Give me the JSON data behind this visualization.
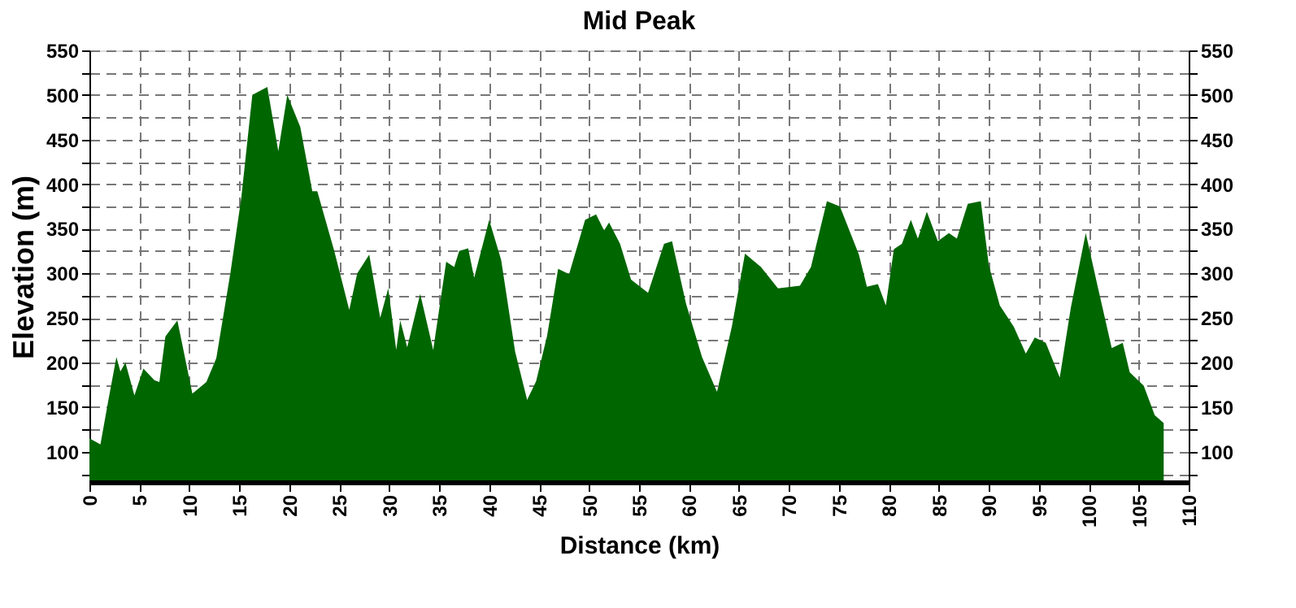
{
  "chart_data": {
    "type": "area",
    "title": "Mid Peak",
    "xlabel": "Distance (km)",
    "ylabel": "Elevation (m)",
    "x": [
      0,
      1.1,
      1.9,
      2.7,
      3.1,
      3.6,
      4.5,
      5.4,
      6.5,
      7.0,
      7.6,
      8.8,
      10.3,
      11.7,
      12.7,
      14.1,
      15.2,
      16.3,
      17.8,
      18.9,
      19.8,
      21.1,
      22.3,
      22.8,
      24.5,
      26.0,
      26.8,
      28.0,
      29.1,
      29.9,
      30.7,
      31.1,
      31.8,
      33.1,
      34.4,
      35.7,
      36.5,
      37.0,
      37.9,
      38.5,
      40.0,
      41.2,
      42.6,
      43.8,
      44.7,
      45.8,
      46.9,
      48.0,
      49.6,
      50.7,
      51.5,
      52.0,
      53.1,
      54.2,
      55.9,
      57.5,
      58.3,
      59.7,
      61.3,
      62.8,
      64.3,
      65.6,
      67.2,
      68.9,
      71.1,
      72.2,
      73.8,
      75.1,
      77.0,
      77.8,
      78.9,
      79.7,
      80.5,
      81.3,
      82.2,
      82.9,
      83.8,
      84.9,
      86.0,
      86.8,
      87.9,
      89.2,
      90.0,
      91.1,
      92.5,
      93.7,
      94.6,
      95.7,
      97.1,
      98.2,
      99.7,
      100.9,
      102.3,
      103.4,
      104.1,
      105.5,
      106.6,
      107.5
    ],
    "series": [
      {
        "color": "#006600",
        "values": [
          115,
          108,
          158,
          206,
          190,
          200,
          163,
          193,
          180,
          178,
          229,
          247,
          165,
          178,
          205,
          300,
          385,
          500,
          509,
          437,
          500,
          464,
          392,
          392,
          325,
          259,
          300,
          321,
          250,
          283,
          214,
          247,
          217,
          277,
          214,
          313,
          307,
          325,
          328,
          295,
          360,
          315,
          212,
          158,
          179,
          230,
          305,
          299,
          360,
          366,
          348,
          357,
          333,
          293,
          278,
          333,
          336,
          266,
          206,
          167,
          241,
          322,
          307,
          283,
          286,
          307,
          381,
          375,
          321,
          285,
          288,
          264,
          327,
          333,
          360,
          339,
          369,
          336,
          345,
          339,
          378,
          381,
          309,
          264,
          240,
          210,
          228,
          222,
          183,
          261,
          345,
          285,
          216,
          222,
          189,
          174,
          141,
          132
        ]
      }
    ],
    "xlim": [
      0,
      110
    ],
    "xticks": [
      0,
      5,
      10,
      15,
      20,
      25,
      30,
      35,
      40,
      45,
      50,
      55,
      60,
      65,
      70,
      75,
      80,
      85,
      90,
      95,
      100,
      105,
      110
    ],
    "ylim": [
      65,
      550
    ],
    "yticks": [
      {
        "value": 75,
        "label": null
      },
      100,
      {
        "value": 125,
        "label": null
      },
      150,
      {
        "value": 175,
        "label": null
      },
      200,
      {
        "value": 225,
        "label": null
      },
      250,
      {
        "value": 275,
        "label": null
      },
      300,
      {
        "value": 325,
        "label": null
      },
      350,
      {
        "value": 375,
        "label": null
      },
      400,
      {
        "value": 425,
        "label": null
      },
      450,
      {
        "value": 475,
        "label": null
      },
      500,
      {
        "value": 525,
        "label": null
      },
      550
    ],
    "y2lim": [
      65,
      550
    ],
    "y2ticks": [
      {
        "value": 75,
        "label": null
      },
      100,
      {
        "value": 125,
        "label": null
      },
      150,
      {
        "value": 175,
        "label": null
      },
      200,
      {
        "value": 225,
        "label": null
      },
      250,
      {
        "value": 275,
        "label": null
      },
      300,
      {
        "value": 325,
        "label": null
      },
      350,
      {
        "value": 375,
        "label": null
      },
      400,
      {
        "value": 425,
        "label": null
      },
      450,
      {
        "value": 475,
        "label": null
      },
      500,
      {
        "value": 525,
        "label": null
      },
      550
    ],
    "grid": true
  }
}
